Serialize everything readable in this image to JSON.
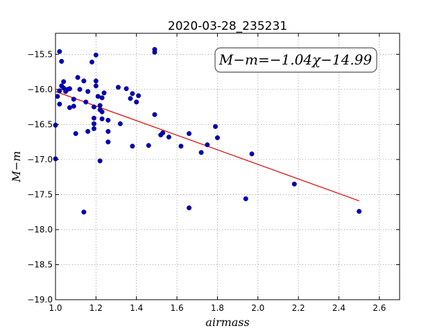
{
  "chart_data": {
    "type": "scatter",
    "title": "2020-03-28_235231",
    "xlabel": "airmass",
    "ylabel": "M−m",
    "annotation": "M−m=−1.04χ−14.99",
    "xlim": [
      1.0,
      2.7
    ],
    "ylim": [
      -19.0,
      -15.2
    ],
    "xticks": [
      1.0,
      1.2,
      1.4,
      1.6,
      1.8,
      2.0,
      2.2,
      2.4,
      2.6
    ],
    "xtick_labels": [
      "1.0",
      "1.2",
      "1.4",
      "1.6",
      "1.8",
      "2.0",
      "2.2",
      "2.4",
      "2.6"
    ],
    "yticks": [
      -15.5,
      -16.0,
      -16.5,
      -17.0,
      -17.5,
      -18.0,
      -18.5,
      -19.0
    ],
    "ytick_labels": [
      "−15.5",
      "−16.0",
      "−16.5",
      "−17.0",
      "−17.5",
      "−18.0",
      "−18.5",
      "−19.0"
    ],
    "grid": true,
    "colors": {
      "points": "#0000bb",
      "fit": "#dd0000",
      "annotation_border": "#555555"
    },
    "points": [
      {
        "x": 1.0,
        "y": -16.51
      },
      {
        "x": 1.0,
        "y": -16.99
      },
      {
        "x": 1.01,
        "y": -16.1
      },
      {
        "x": 1.02,
        "y": -15.46
      },
      {
        "x": 1.02,
        "y": -16.02
      },
      {
        "x": 1.02,
        "y": -16.21
      },
      {
        "x": 1.03,
        "y": -15.6
      },
      {
        "x": 1.03,
        "y": -15.95
      },
      {
        "x": 1.04,
        "y": -15.89
      },
      {
        "x": 1.04,
        "y": -15.98
      },
      {
        "x": 1.05,
        "y": -16.03
      },
      {
        "x": 1.06,
        "y": -16.0
      },
      {
        "x": 1.07,
        "y": -15.99
      },
      {
        "x": 1.07,
        "y": -16.26
      },
      {
        "x": 1.09,
        "y": -16.14
      },
      {
        "x": 1.09,
        "y": -16.24
      },
      {
        "x": 1.1,
        "y": -16.63
      },
      {
        "x": 1.11,
        "y": -15.83
      },
      {
        "x": 1.12,
        "y": -16.0
      },
      {
        "x": 1.14,
        "y": -17.75
      },
      {
        "x": 1.14,
        "y": -15.88
      },
      {
        "x": 1.15,
        "y": -16.18
      },
      {
        "x": 1.16,
        "y": -16.03
      },
      {
        "x": 1.16,
        "y": -16.6
      },
      {
        "x": 1.18,
        "y": -15.61
      },
      {
        "x": 1.19,
        "y": -16.25
      },
      {
        "x": 1.19,
        "y": -16.41
      },
      {
        "x": 1.19,
        "y": -16.49
      },
      {
        "x": 1.19,
        "y": -16.56
      },
      {
        "x": 1.2,
        "y": -15.51
      },
      {
        "x": 1.2,
        "y": -15.88
      },
      {
        "x": 1.2,
        "y": -15.95
      },
      {
        "x": 1.21,
        "y": -16.1
      },
      {
        "x": 1.22,
        "y": -16.23
      },
      {
        "x": 1.22,
        "y": -16.29
      },
      {
        "x": 1.22,
        "y": -17.02
      },
      {
        "x": 1.23,
        "y": -16.32
      },
      {
        "x": 1.23,
        "y": -16.12
      },
      {
        "x": 1.23,
        "y": -16.42
      },
      {
        "x": 1.24,
        "y": -16.05
      },
      {
        "x": 1.26,
        "y": -16.44
      },
      {
        "x": 1.26,
        "y": -16.6
      },
      {
        "x": 1.26,
        "y": -16.75
      },
      {
        "x": 1.31,
        "y": -15.97
      },
      {
        "x": 1.32,
        "y": -16.49
      },
      {
        "x": 1.35,
        "y": -15.99
      },
      {
        "x": 1.37,
        "y": -16.13
      },
      {
        "x": 1.38,
        "y": -16.06
      },
      {
        "x": 1.38,
        "y": -16.81
      },
      {
        "x": 1.4,
        "y": -16.18
      },
      {
        "x": 1.41,
        "y": -16.09
      },
      {
        "x": 1.46,
        "y": -16.8
      },
      {
        "x": 1.49,
        "y": -15.43
      },
      {
        "x": 1.49,
        "y": -15.47
      },
      {
        "x": 1.49,
        "y": -16.36
      },
      {
        "x": 1.52,
        "y": -16.65
      },
      {
        "x": 1.53,
        "y": -16.62
      },
      {
        "x": 1.56,
        "y": -16.68
      },
      {
        "x": 1.62,
        "y": -16.81
      },
      {
        "x": 1.66,
        "y": -16.63
      },
      {
        "x": 1.66,
        "y": -17.69
      },
      {
        "x": 1.72,
        "y": -16.9
      },
      {
        "x": 1.75,
        "y": -16.79
      },
      {
        "x": 1.79,
        "y": -16.53
      },
      {
        "x": 1.8,
        "y": -16.69
      },
      {
        "x": 1.94,
        "y": -17.56
      },
      {
        "x": 1.97,
        "y": -16.92
      },
      {
        "x": 2.18,
        "y": -17.35
      },
      {
        "x": 2.5,
        "y": -17.74
      }
    ],
    "fit": {
      "slope": -1.04,
      "intercept": -14.99,
      "x_start": 1.0,
      "x_end": 2.5
    }
  }
}
